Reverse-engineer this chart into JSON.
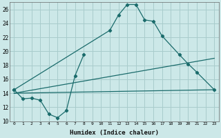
{
  "xlabel": "Humidex (Indice chaleur)",
  "background_color": "#cce8e8",
  "grid_color": "#a8cccc",
  "line_color": "#1a6b6b",
  "xlim": [
    -0.5,
    23.5
  ],
  "ylim": [
    10,
    27
  ],
  "xticks": [
    0,
    1,
    2,
    3,
    4,
    5,
    6,
    7,
    8,
    9,
    10,
    11,
    12,
    13,
    14,
    15,
    16,
    17,
    18,
    19,
    20,
    21,
    22,
    23
  ],
  "yticks": [
    10,
    12,
    14,
    16,
    18,
    20,
    22,
    24,
    26
  ],
  "series1_x": [
    0,
    1,
    2,
    3,
    4,
    5,
    6,
    7,
    8
  ],
  "series1_y": [
    14.5,
    13.2,
    13.3,
    13.0,
    11.0,
    10.5,
    11.5,
    16.5,
    19.5
  ],
  "series2_x": [
    0,
    11,
    12,
    13,
    14,
    15,
    16,
    17,
    19,
    20,
    21,
    23
  ],
  "series2_y": [
    14.5,
    23.0,
    25.2,
    26.7,
    26.7,
    24.5,
    24.3,
    22.2,
    19.5,
    18.2,
    17.0,
    14.5
  ],
  "series3_x": [
    0,
    23
  ],
  "series3_y": [
    14.0,
    19.0
  ],
  "series4_x": [
    0,
    23
  ],
  "series4_y": [
    14.0,
    14.5
  ]
}
